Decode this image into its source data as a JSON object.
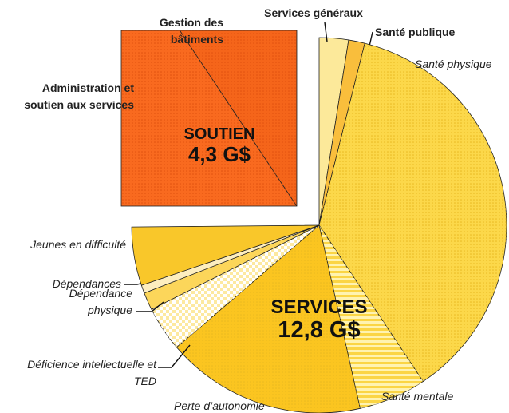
{
  "chart_data": {
    "type": "pie",
    "series": [
      {
        "name": "Services généraux",
        "color": "#fce99a",
        "values": [
          0.43
        ]
      },
      {
        "name": "Santé publique",
        "color": "#f9be3c",
        "values": [
          0.24
        ]
      },
      {
        "name": "Santé physique",
        "color": "#fcd84a",
        "values": [
          6.28
        ]
      },
      {
        "name": "Santé mentale",
        "color": "#fbd544",
        "values": [
          1.0
        ]
      },
      {
        "name": "Perte d’autonomie",
        "color": "#fbc520",
        "values": [
          2.95
        ]
      },
      {
        "name": "Déficience intellectuelle et TED",
        "color": "#fde9a0",
        "values": [
          0.66
        ]
      },
      {
        "name": "Dépendance physique",
        "color": "#fcd65a",
        "values": [
          0.26
        ]
      },
      {
        "name": "Dépendances",
        "color": "#fdeec0",
        "values": [
          0.12
        ]
      },
      {
        "name": "Jeunes en difficulté",
        "color": "#f9c72a",
        "values": [
          0.86
        ]
      },
      {
        "name": "Administration et soutien aux services",
        "color": "#f96a1f",
        "values": [
          2.7
        ]
      },
      {
        "name": "Gestion des bâtiments",
        "color": "#f5651a",
        "values": [
          1.6
        ]
      }
    ],
    "groups": [
      {
        "name": "SERVICES",
        "label": "12,8 G$"
      },
      {
        "name": "SOUTIEN",
        "label": "4,3 G$"
      }
    ]
  }
}
